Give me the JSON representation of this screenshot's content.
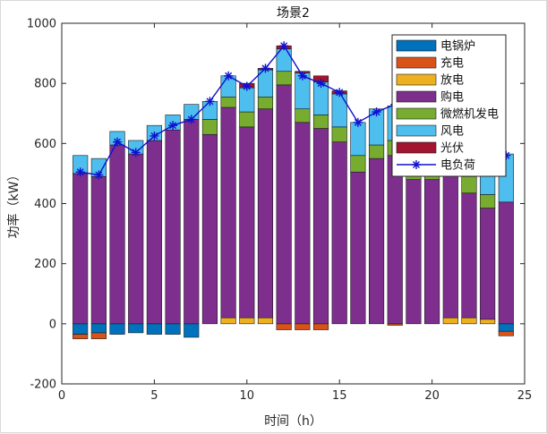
{
  "chart_data": {
    "type": "bar",
    "stacked": true,
    "title": "场景2",
    "xlabel": "时间（h）",
    "ylabel": "功率（kW）",
    "xlim": [
      0,
      25
    ],
    "ylim": [
      -200,
      1000
    ],
    "xticks": [
      0,
      5,
      10,
      15,
      20,
      25
    ],
    "yticks": [
      -200,
      0,
      200,
      400,
      600,
      800,
      1000
    ],
    "grid": false,
    "legend_position": "top-right",
    "x": [
      1,
      2,
      3,
      4,
      5,
      6,
      7,
      8,
      9,
      10,
      11,
      12,
      13,
      14,
      15,
      16,
      17,
      18,
      19,
      20,
      21,
      22,
      23,
      24
    ],
    "bar_series": [
      {
        "name": "电锅炉",
        "color": "#0072BD",
        "values": [
          -35,
          -30,
          -35,
          -30,
          -35,
          -35,
          -45,
          0,
          0,
          0,
          0,
          0,
          0,
          0,
          0,
          0,
          0,
          0,
          0,
          0,
          0,
          0,
          0,
          -25
        ]
      },
      {
        "name": "充电",
        "color": "#D95319",
        "values": [
          -15,
          -20,
          0,
          0,
          0,
          0,
          0,
          0,
          0,
          0,
          0,
          -20,
          -20,
          -20,
          0,
          0,
          0,
          -5,
          0,
          0,
          0,
          0,
          0,
          -15
        ]
      },
      {
        "name": "放电",
        "color": "#EDB120",
        "values": [
          0,
          0,
          0,
          0,
          0,
          0,
          0,
          0,
          20,
          20,
          20,
          0,
          0,
          0,
          0,
          0,
          0,
          0,
          0,
          0,
          20,
          20,
          15,
          0
        ]
      },
      {
        "name": "购电",
        "color": "#7E2F8E",
        "values": [
          500,
          490,
          595,
          565,
          610,
          645,
          680,
          630,
          700,
          635,
          695,
          795,
          670,
          650,
          605,
          505,
          550,
          560,
          480,
          480,
          475,
          415,
          370,
          405
        ]
      },
      {
        "name": "微燃机发电",
        "color": "#77AC30",
        "values": [
          0,
          0,
          0,
          0,
          0,
          0,
          0,
          50,
          35,
          50,
          40,
          45,
          45,
          45,
          50,
          55,
          45,
          50,
          50,
          55,
          50,
          55,
          45,
          0
        ]
      },
      {
        "name": "风电",
        "color": "#4DBEEE",
        "values": [
          60,
          60,
          45,
          45,
          50,
          50,
          50,
          60,
          70,
          80,
          90,
          75,
          120,
          110,
          110,
          110,
          120,
          115,
          135,
          140,
          145,
          150,
          145,
          160
        ]
      },
      {
        "name": "光伏",
        "color": "#A2142F",
        "values": [
          0,
          0,
          0,
          0,
          0,
          0,
          0,
          0,
          0,
          15,
          5,
          10,
          5,
          20,
          10,
          0,
          0,
          0,
          0,
          0,
          0,
          0,
          0,
          0
        ]
      }
    ],
    "line_series": [
      {
        "name": "电负荷",
        "color": "#1010d0",
        "marker": "star",
        "values": [
          505,
          495,
          605,
          570,
          625,
          660,
          680,
          740,
          825,
          790,
          850,
          925,
          825,
          800,
          770,
          670,
          705,
          730,
          735,
          750,
          685,
          635,
          575,
          560
        ]
      }
    ]
  }
}
